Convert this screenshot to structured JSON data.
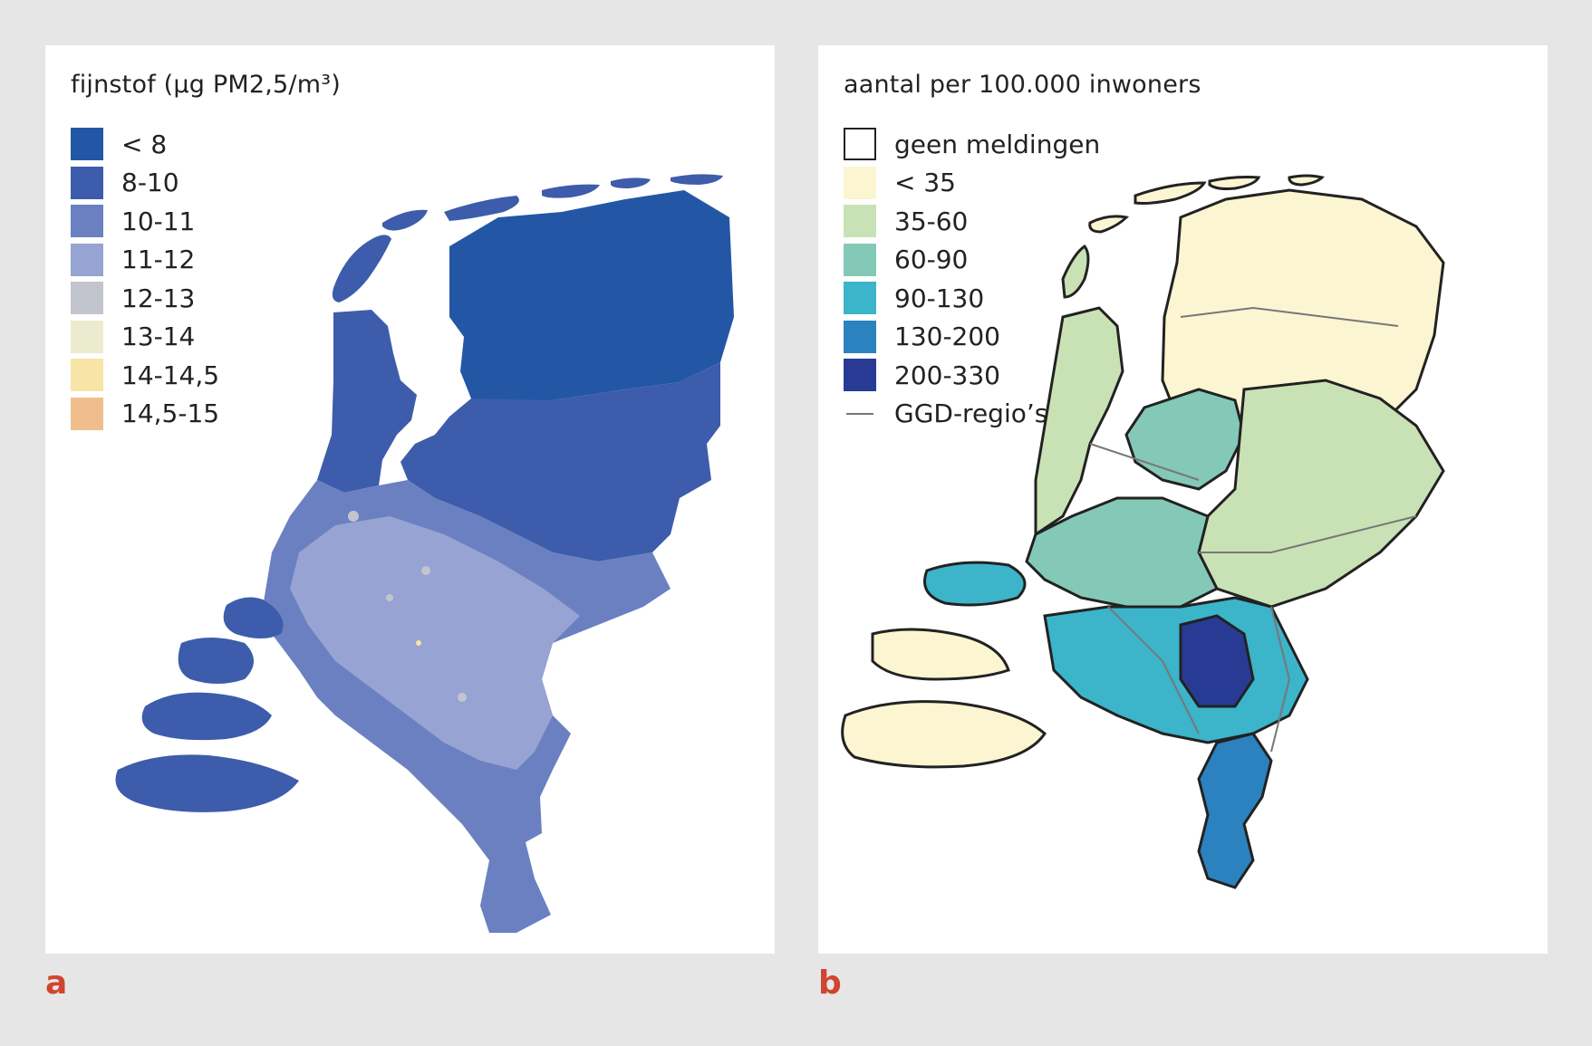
{
  "panel_a": {
    "legend_title": "fijnstof (µg PM2,5/m³)",
    "legend": [
      {
        "label": "< 8",
        "color": "#2357a6"
      },
      {
        "label": "8-10",
        "color": "#3d5cab"
      },
      {
        "label": "10-11",
        "color": "#6a80c1"
      },
      {
        "label": "11-12",
        "color": "#97a3d2"
      },
      {
        "label": "12-13",
        "color": "#c2c5cd"
      },
      {
        "label": "13-14",
        "color": "#ebebd0"
      },
      {
        "label": "14-14,5",
        "color": "#f8e4a6"
      },
      {
        "label": "14,5-15",
        "color": "#f0be8c"
      }
    ],
    "letter": "a"
  },
  "panel_b": {
    "legend_title": "aantal per 100.000 inwoners",
    "legend": [
      {
        "label": "geen meldingen",
        "color": "#ffffff",
        "style": "outline"
      },
      {
        "label": "< 35",
        "color": "#fbf5d2"
      },
      {
        "label": "35-60",
        "color": "#c9e2b5"
      },
      {
        "label": "60-90",
        "color": "#84c9b8"
      },
      {
        "label": "90-130",
        "color": "#3cb4c9"
      },
      {
        "label": "130-200",
        "color": "#2b82bf"
      },
      {
        "label": "200-330",
        "color": "#273b94"
      },
      {
        "label": "GGD-regio’s",
        "color": "#777777",
        "style": "line"
      }
    ],
    "letter": "b"
  }
}
